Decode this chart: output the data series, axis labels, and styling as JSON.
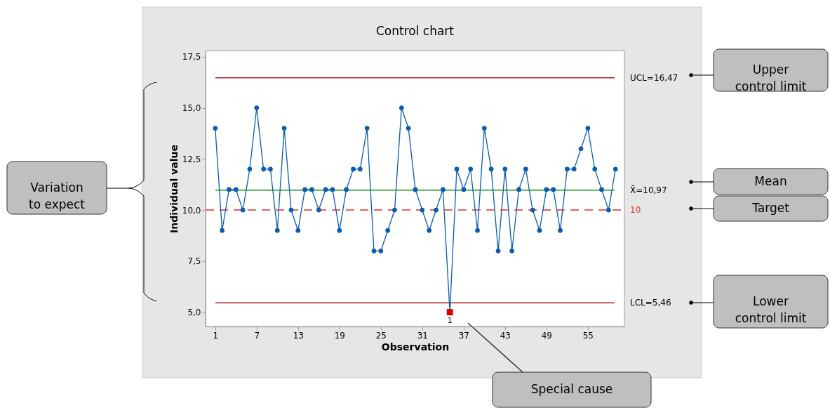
{
  "chart_data": {
    "type": "line",
    "title": "Control chart",
    "xlabel": "Observation",
    "ylabel": "Individual value",
    "x": [
      1,
      2,
      3,
      4,
      5,
      6,
      7,
      8,
      9,
      10,
      11,
      12,
      13,
      14,
      15,
      16,
      17,
      18,
      19,
      20,
      21,
      22,
      23,
      24,
      25,
      26,
      27,
      28,
      29,
      30,
      31,
      32,
      33,
      34,
      35,
      36,
      37,
      38,
      39,
      40,
      41,
      42,
      43,
      44,
      45,
      46,
      47,
      48,
      49,
      50,
      51,
      52,
      53,
      54,
      55,
      56,
      57,
      58,
      59
    ],
    "series": [
      {
        "color": "#0b5cad",
        "marker": "circle",
        "values": [
          14,
          9,
          11,
          11,
          10,
          12,
          15,
          12,
          12,
          9,
          14,
          10,
          9,
          11,
          11,
          10,
          11,
          11,
          9,
          11,
          12,
          12,
          14,
          8,
          8,
          9,
          10,
          15,
          14,
          11,
          10,
          9,
          10,
          11,
          5,
          12,
          11,
          12,
          9,
          14,
          12,
          8,
          12,
          8,
          11,
          12,
          10,
          9,
          11,
          11,
          9,
          12,
          12,
          13,
          14,
          12,
          11,
          10,
          12
        ]
      },
      {
        "type": "scatter",
        "color": "#e00000",
        "marker": "square",
        "x": [
          35
        ],
        "values": [
          5
        ]
      }
    ],
    "xlim": [
      -0.4,
      60.3
    ],
    "ylim": [
      4.3,
      17.8
    ],
    "xticks": [
      1,
      7,
      13,
      19,
      25,
      31,
      37,
      43,
      49,
      55
    ],
    "yticks": [
      {
        "value": 5,
        "label": "5,0"
      },
      {
        "value": 7.5,
        "label": "7,5"
      },
      {
        "value": 10,
        "label": "10,0"
      },
      {
        "value": 12.5,
        "label": "12,5"
      },
      {
        "value": 15,
        "label": "15,0"
      },
      {
        "value": 17.5,
        "label": "17,5"
      }
    ],
    "ref_lines": [
      {
        "axis": "y",
        "value": 16.47,
        "label": "UCL=16,47",
        "color": "#b22222"
      },
      {
        "axis": "y",
        "value": 10.97,
        "label": "X̄=10,97",
        "color": "#1a9a1a"
      },
      {
        "axis": "y",
        "value": 10,
        "label": "10",
        "color": "#e03030",
        "line_style": "dashed"
      },
      {
        "axis": "y",
        "value": 5.46,
        "label": "LCL=5,46",
        "color": "#b22222"
      }
    ],
    "annotations": [
      {
        "text": "1",
        "x": 35,
        "y": 5
      },
      "Upper\ncontrol limit",
      "Mean",
      "Target",
      "Lower\ncontrol limit",
      "Variation\nto expect",
      "Special cause"
    ],
    "grid": false
  }
}
